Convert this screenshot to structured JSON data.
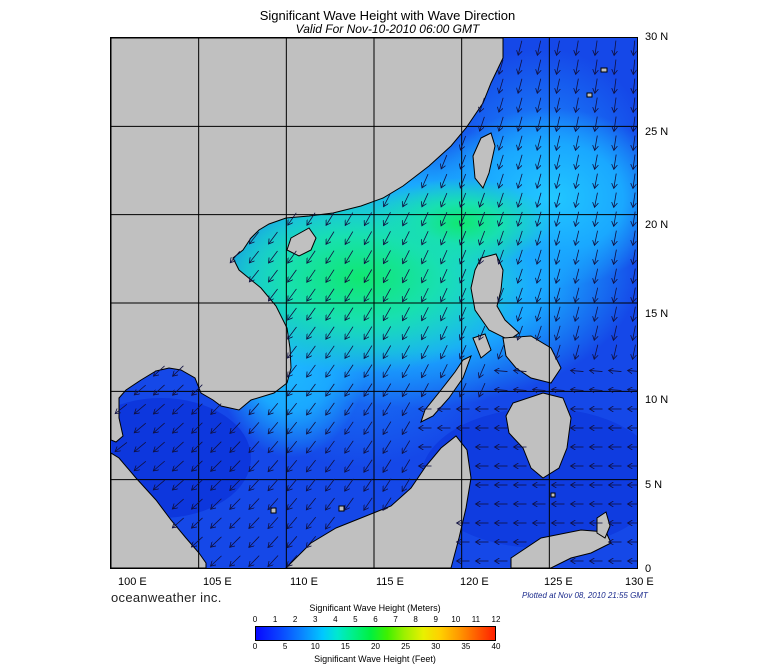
{
  "header": {
    "title": "Significant Wave Height with Wave Direction",
    "subtitle": "Valid For Nov-10-2010 06:00 GMT"
  },
  "map": {
    "lon_range": [
      100,
      130
    ],
    "lat_range": [
      0,
      30
    ],
    "lon_labels": [
      "100 E",
      "105 E",
      "110 E",
      "115 E",
      "120 E",
      "125 E",
      "130 E"
    ],
    "lat_labels": [
      "30 N",
      "25 N",
      "20 N",
      "15 N",
      "10 N",
      "5 N",
      "0"
    ],
    "land_color": "#c0c0c0",
    "grid_color": "#000000"
  },
  "footer": {
    "brand": "oceanweather inc.",
    "plotted": "Plotted at Nov 08, 2010 21:55 GMT"
  },
  "colorbar": {
    "title_meters": "Significant Wave Height (Meters)",
    "title_feet": "Significant Wave Height (Feet)",
    "meters_ticks": [
      "0",
      "1",
      "2",
      "3",
      "4",
      "5",
      "6",
      "7",
      "8",
      "9",
      "10",
      "11",
      "12"
    ],
    "feet_ticks": [
      "0",
      "5",
      "10",
      "15",
      "20",
      "25",
      "30",
      "35",
      "40"
    ]
  }
}
